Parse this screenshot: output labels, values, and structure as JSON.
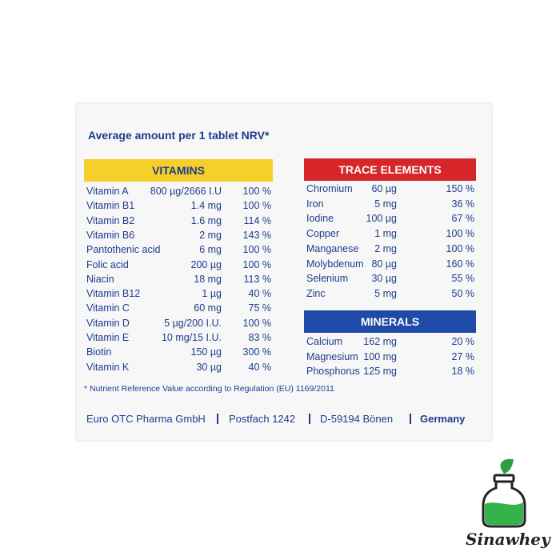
{
  "header": {
    "title": "Average amount per 1 tablet NRV*"
  },
  "vitamins": {
    "title": "VITAMINS",
    "rows": [
      [
        "Vitamin A",
        "800 µg/2666 I.U",
        "100 %"
      ],
      [
        "Vitamin B1",
        "1.4 mg",
        "100 %"
      ],
      [
        "Vitamin B2",
        "1.6 mg",
        "114 %"
      ],
      [
        "Vitamin B6",
        "2 mg",
        "143 %"
      ],
      [
        "Pantothenic acid",
        "6 mg",
        "100 %"
      ],
      [
        "Folic acid",
        "200 µg",
        "100 %"
      ],
      [
        "Niacin",
        "18 mg",
        "113 %"
      ],
      [
        "Vitamin B12",
        "1 µg",
        "40 %"
      ],
      [
        "Vitamin C",
        "60 mg",
        "75 %"
      ],
      [
        "Vitamin D",
        "5 µg/200 I.U.",
        "100 %"
      ],
      [
        "Vitamin E",
        "10 mg/15 I.U.",
        "83 %"
      ],
      [
        "Biotin",
        "150 µg",
        "300 %"
      ],
      [
        "Vitamin K",
        "30 µg",
        "40 %"
      ]
    ]
  },
  "trace_elements": {
    "title": "TRACE ELEMENTS",
    "rows": [
      [
        "Chromium",
        "60 µg",
        "150 %"
      ],
      [
        "Iron",
        "5 mg",
        "36 %"
      ],
      [
        "Iodine",
        "100 µg",
        "67 %"
      ],
      [
        "Copper",
        "1 mg",
        "100 %"
      ],
      [
        "Manganese",
        "2 mg",
        "100 %"
      ],
      [
        "Molybdenum",
        "80 µg",
        "160 %"
      ],
      [
        "Selenium",
        "30 µg",
        "55 %"
      ],
      [
        "Zinc",
        "5 mg",
        "50 %"
      ]
    ]
  },
  "minerals": {
    "title": "MINERALS",
    "rows": [
      [
        "Calcium",
        "162 mg",
        "20 %"
      ],
      [
        "Magnesium",
        "100 mg",
        "27 %"
      ],
      [
        "Phosphorus",
        "125 mg",
        "18 %"
      ]
    ]
  },
  "footnote": "* Nutrient Reference Value according to Regulation (EU) 1169/2011",
  "address": [
    "Euro OTC Pharma GmbH",
    "Postfach 1242",
    "D-59194 Bönen",
    "Germany"
  ],
  "logo": {
    "text": "Sinawhey"
  }
}
